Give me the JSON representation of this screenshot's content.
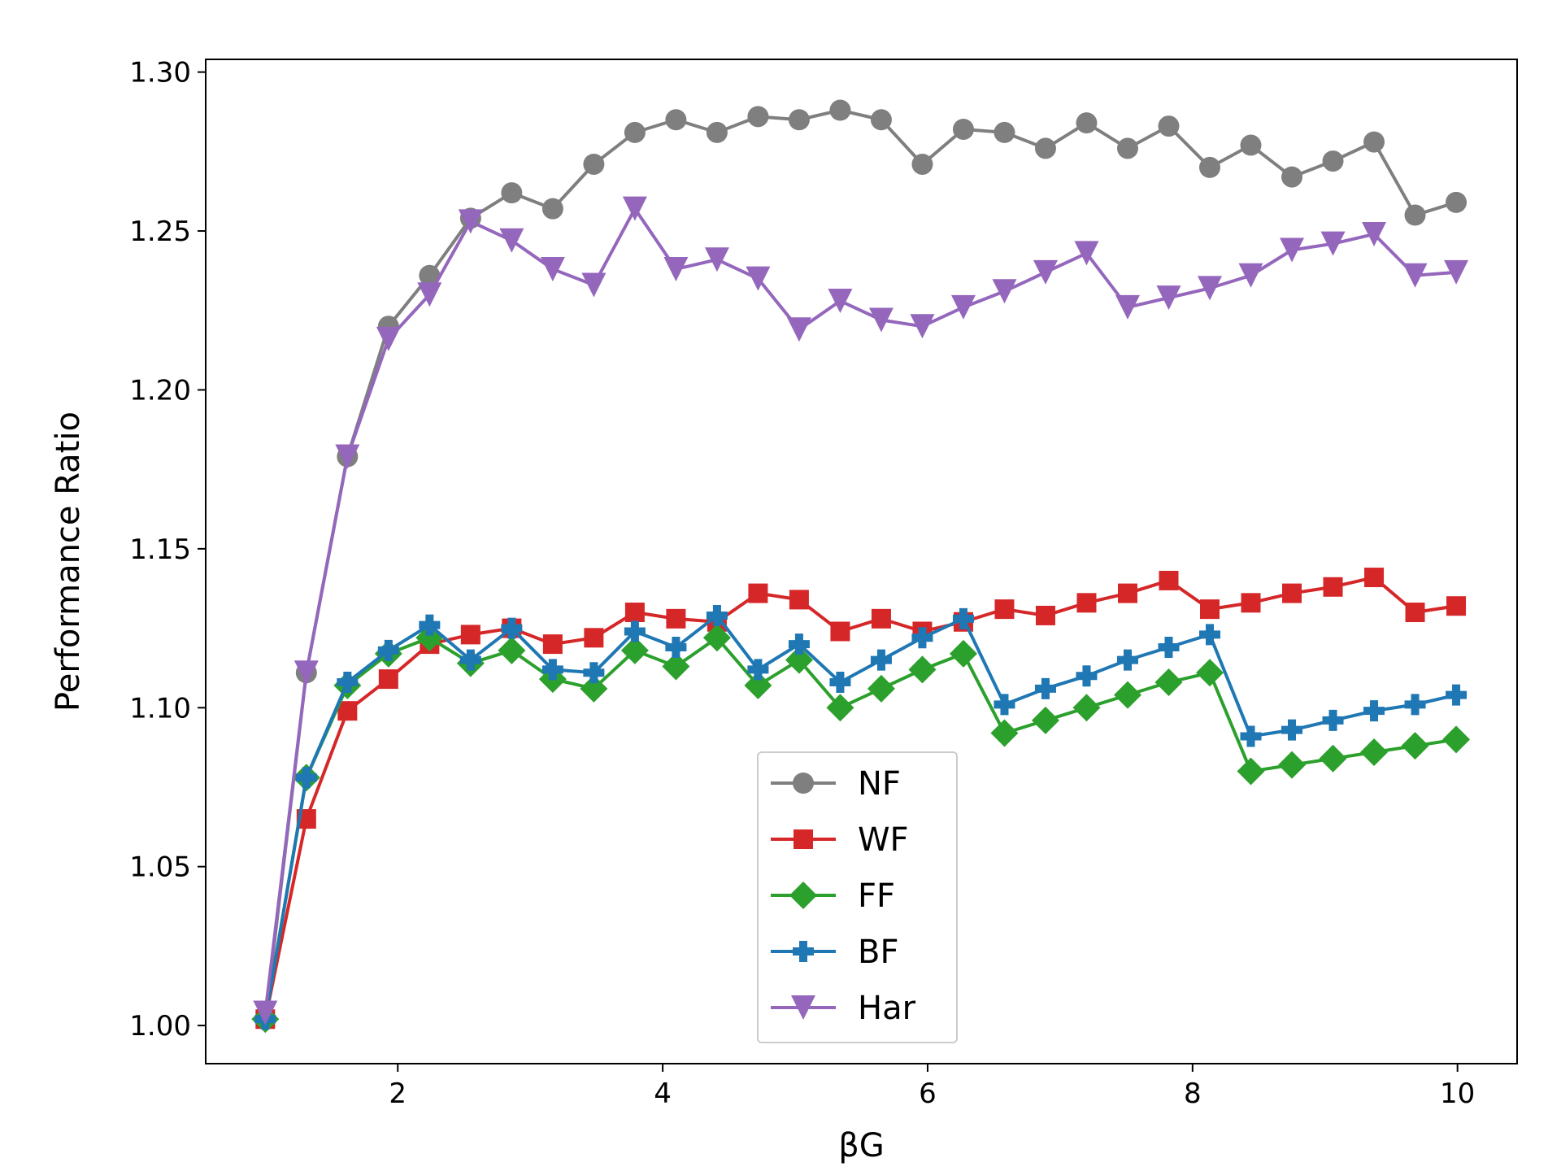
{
  "chart_data": {
    "type": "line",
    "xlabel": "βG",
    "ylabel": "Performance Ratio",
    "xlim": [
      0.55,
      10.45
    ],
    "ylim": [
      0.988,
      1.304
    ],
    "x_ticks": [
      2,
      4,
      6,
      8,
      10
    ],
    "x_tick_labels": [
      "2",
      "4",
      "6",
      "8",
      "10"
    ],
    "y_ticks": [
      1.0,
      1.05,
      1.1,
      1.15,
      1.2,
      1.25,
      1.3
    ],
    "y_tick_labels": [
      "1.00",
      "1.05",
      "1.10",
      "1.15",
      "1.20",
      "1.25",
      "1.30"
    ],
    "grid": false,
    "legend_position": "lower-center",
    "x": [
      1.0,
      1.31,
      1.62,
      1.93,
      2.24,
      2.55,
      2.86,
      3.17,
      3.48,
      3.79,
      4.1,
      4.41,
      4.72,
      5.03,
      5.34,
      5.65,
      5.96,
      6.27,
      6.58,
      6.89,
      7.2,
      7.51,
      7.82,
      8.13,
      8.44,
      8.75,
      9.06,
      9.37,
      9.68,
      9.99
    ],
    "series": [
      {
        "name": "NF",
        "color": "#7f7f7f",
        "marker": "circle",
        "values": [
          1.002,
          1.111,
          1.179,
          1.22,
          1.236,
          1.254,
          1.262,
          1.257,
          1.271,
          1.281,
          1.285,
          1.281,
          1.286,
          1.285,
          1.288,
          1.285,
          1.271,
          1.282,
          1.281,
          1.276,
          1.284,
          1.276,
          1.283,
          1.27,
          1.277,
          1.267,
          1.272,
          1.278,
          1.255,
          1.259
        ]
      },
      {
        "name": "WF",
        "color": "#d62728",
        "marker": "square",
        "values": [
          1.002,
          1.065,
          1.099,
          1.109,
          1.12,
          1.123,
          1.125,
          1.12,
          1.122,
          1.13,
          1.128,
          1.127,
          1.136,
          1.134,
          1.124,
          1.128,
          1.124,
          1.127,
          1.131,
          1.129,
          1.133,
          1.136,
          1.14,
          1.131,
          1.133,
          1.136,
          1.138,
          1.141,
          1.13,
          1.132
        ]
      },
      {
        "name": "FF",
        "color": "#2ca02c",
        "marker": "diamond",
        "values": [
          1.002,
          1.078,
          1.107,
          1.117,
          1.122,
          1.114,
          1.118,
          1.109,
          1.106,
          1.118,
          1.113,
          1.122,
          1.107,
          1.115,
          1.1,
          1.106,
          1.112,
          1.117,
          1.092,
          1.096,
          1.1,
          1.104,
          1.108,
          1.111,
          1.08,
          1.082,
          1.084,
          1.086,
          1.088,
          1.09
        ]
      },
      {
        "name": "BF",
        "color": "#1f77b4",
        "marker": "plus",
        "values": [
          1.002,
          1.078,
          1.108,
          1.118,
          1.126,
          1.115,
          1.125,
          1.112,
          1.111,
          1.124,
          1.119,
          1.129,
          1.112,
          1.12,
          1.108,
          1.115,
          1.122,
          1.128,
          1.101,
          1.106,
          1.11,
          1.115,
          1.119,
          1.123,
          1.091,
          1.093,
          1.096,
          1.099,
          1.101,
          1.104
        ]
      },
      {
        "name": "Har",
        "color": "#9467bd",
        "marker": "triangle-down",
        "values": [
          1.004,
          1.111,
          1.179,
          1.216,
          1.23,
          1.253,
          1.247,
          1.238,
          1.233,
          1.257,
          1.238,
          1.241,
          1.235,
          1.219,
          1.228,
          1.222,
          1.22,
          1.226,
          1.231,
          1.237,
          1.243,
          1.226,
          1.229,
          1.232,
          1.236,
          1.244,
          1.246,
          1.249,
          1.236,
          1.237
        ]
      }
    ]
  }
}
